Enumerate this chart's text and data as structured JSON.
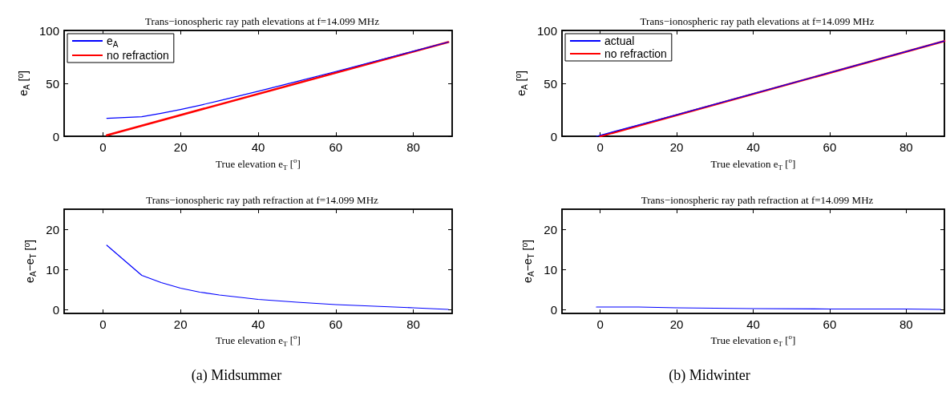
{
  "chart_data": [
    {
      "type": "line",
      "title": "Trans−ionospheric ray path elevations at f=14.099 MHz",
      "xlabel": "True elevation e$_{T}$ [$^{o}$]",
      "ylabel": "e$_{A}$ [$^{o}$]",
      "xlim": [
        -10,
        90
      ],
      "xticks": [
        0,
        20,
        40,
        60,
        80
      ],
      "ylim": [
        0,
        100
      ],
      "yticks": [
        0,
        50,
        100
      ],
      "grid": false,
      "legend": "top left",
      "marker": "none",
      "line_style": "solid",
      "series": [
        {
          "name": "e$_{A}$",
          "color": "#0000ff",
          "x": [
            1,
            10,
            15,
            20,
            25,
            30,
            40,
            50,
            60,
            70,
            80,
            89
          ],
          "values": [
            17,
            18.5,
            21.7,
            25.3,
            29.3,
            33.6,
            42.5,
            51.8,
            61.2,
            70.8,
            80.4,
            89
          ]
        },
        {
          "name": "no refraction",
          "color": "#ff0000",
          "x": [
            1,
            89
          ],
          "values": [
            1,
            89
          ]
        }
      ]
    },
    {
      "type": "line",
      "title": "Trans−ionospheric ray path elevations at f=14.099 MHz",
      "xlabel": "True elevation e$_{T}$ [$^{o}$]",
      "ylabel": "e$_{A}$ [$^{o}$]",
      "xlim": [
        -10,
        90
      ],
      "xticks": [
        0,
        20,
        40,
        60,
        80
      ],
      "ylim": [
        0,
        100
      ],
      "yticks": [
        0,
        50,
        100
      ],
      "grid": false,
      "legend": "top left",
      "marker": "none",
      "line_style": "solid",
      "series": [
        {
          "name": "actual",
          "color": "#0000ff",
          "x": [
            -1,
            20,
            40,
            60,
            90
          ],
          "values": [
            0,
            20.4,
            40.2,
            60.1,
            90
          ]
        },
        {
          "name": "no refraction",
          "color": "#ff0000",
          "x": [
            0,
            90
          ],
          "values": [
            0,
            90
          ]
        }
      ]
    },
    {
      "type": "line",
      "title": "Trans−ionospheric ray path refraction at f=14.099 MHz",
      "xlabel": "True elevation e$_{T}$ [$^{o}$]",
      "ylabel": "e$_{A}$−e$_{T}$ [$^{o}$]",
      "xlim": [
        -10,
        90
      ],
      "xticks": [
        0,
        20,
        40,
        60,
        80
      ],
      "ylim": [
        -1,
        25
      ],
      "yticks": [
        0,
        10,
        20
      ],
      "grid": false,
      "marker": "none",
      "line_style": "solid",
      "annotations": [
        "(a) Midsummer"
      ],
      "series": [
        {
          "color": "#0000ff",
          "x": [
            1,
            10,
            15,
            20,
            25,
            30,
            40,
            50,
            60,
            70,
            80,
            89
          ],
          "values": [
            16,
            8.5,
            6.7,
            5.3,
            4.3,
            3.6,
            2.5,
            1.8,
            1.2,
            0.8,
            0.4,
            0
          ]
        }
      ]
    },
    {
      "type": "line",
      "title": "Trans−ionospheric ray path refraction at f=14.099 MHz",
      "xlabel": "True elevation e$_{T}$ [$^{o}$]",
      "ylabel": "e$_{A}$−e$_{T}$ [$^{o}$]",
      "xlim": [
        -10,
        90
      ],
      "xticks": [
        0,
        20,
        40,
        60,
        80
      ],
      "ylim": [
        -1,
        25
      ],
      "yticks": [
        0,
        10,
        20
      ],
      "grid": false,
      "marker": "none",
      "line_style": "solid",
      "annotations": [
        "(b) Midwinter"
      ],
      "series": [
        {
          "color": "#0000ff",
          "x": [
            -1,
            10,
            20,
            30,
            40,
            60,
            80,
            89
          ],
          "values": [
            0.6,
            0.6,
            0.4,
            0.3,
            0.2,
            0.1,
            0.1,
            0
          ]
        }
      ]
    }
  ]
}
